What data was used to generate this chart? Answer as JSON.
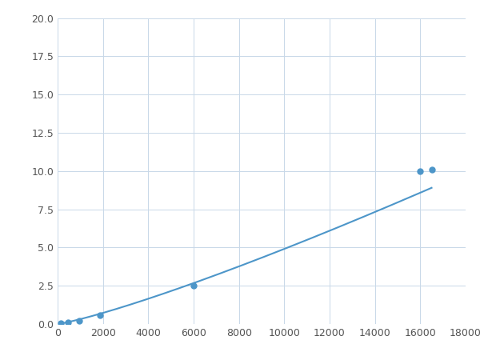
{
  "x": [
    156,
    469,
    938,
    1875,
    6000,
    16000,
    16500
  ],
  "y": [
    0.05,
    0.12,
    0.2,
    0.6,
    2.5,
    10.0,
    10.1
  ],
  "line_color": "#4d96c9",
  "marker_color": "#4d96c9",
  "marker_size": 5,
  "xlim": [
    0,
    18000
  ],
  "ylim": [
    0,
    20
  ],
  "xticks": [
    0,
    2000,
    4000,
    6000,
    8000,
    10000,
    12000,
    14000,
    16000,
    18000
  ],
  "yticks": [
    0.0,
    2.5,
    5.0,
    7.5,
    10.0,
    12.5,
    15.0,
    17.5,
    20.0
  ],
  "grid_color": "#c8d8e8",
  "background_color": "#ffffff",
  "fig_width": 6.0,
  "fig_height": 4.5,
  "dpi": 100
}
